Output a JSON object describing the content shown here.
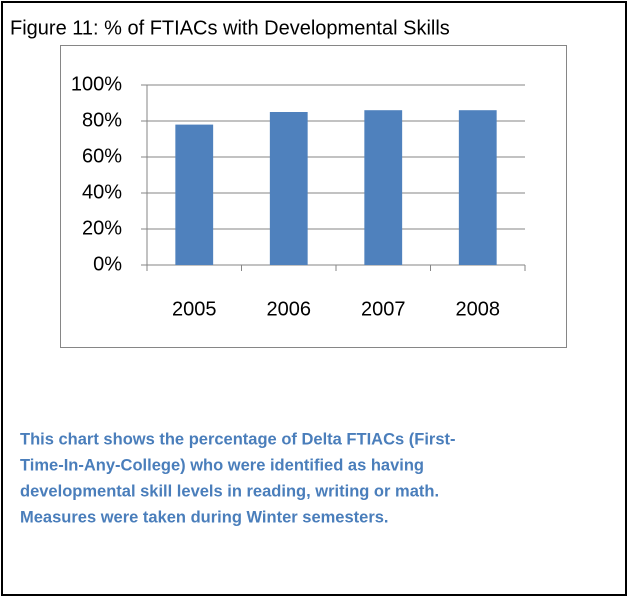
{
  "chart_data": {
    "type": "bar",
    "title": "Figure 11: % of FTIACs with Developmental Skills",
    "categories": [
      "2005",
      "2006",
      "2007",
      "2008"
    ],
    "values": [
      78,
      85,
      86,
      86
    ],
    "color": "#4f81bd",
    "ylim": [
      0,
      100
    ],
    "yticks": [
      {
        "value": 0,
        "label": "0%"
      },
      {
        "value": 20,
        "label": "20%"
      },
      {
        "value": 40,
        "label": "40%"
      },
      {
        "value": 60,
        "label": "60%"
      },
      {
        "value": 80,
        "label": "80%"
      },
      {
        "value": 100,
        "label": "100%"
      }
    ],
    "grid": true
  },
  "description": [
    "This chart shows the percentage of Delta FTIACs (First-",
    "Time-In-Any-College) who were identified as having",
    "developmental skill levels in reading, writing or math.",
    "Measures were taken during Winter semesters."
  ]
}
